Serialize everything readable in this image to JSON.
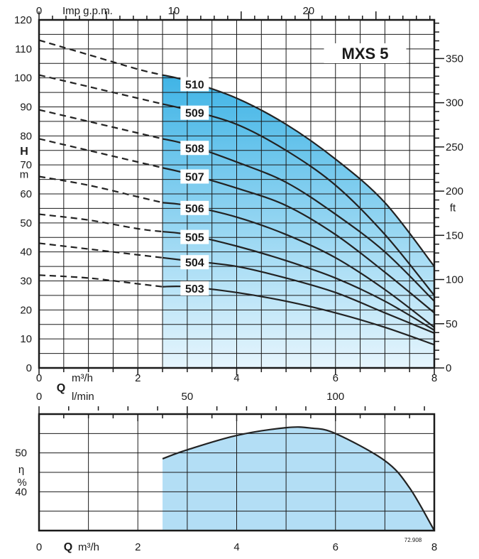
{
  "chart_data": [
    {
      "type": "line",
      "title": "MXS 5",
      "x": {
        "label_unit": "m³/h",
        "label_symbol": "Q",
        "range": [
          0,
          8
        ],
        "ticks": [
          0,
          2,
          4,
          6,
          8
        ]
      },
      "x_lpm": {
        "label": "l/min",
        "range": [
          0,
          133.33
        ],
        "ticks": [
          0,
          50,
          100
        ]
      },
      "x_gpm": {
        "label": "Imp g.p.m.",
        "range": [
          0,
          29.3
        ],
        "ticks": [
          0,
          10,
          20
        ]
      },
      "y": {
        "label_symbol": "H",
        "label_unit": "m",
        "range": [
          0,
          120
        ],
        "ticks": [
          0,
          10,
          20,
          30,
          40,
          50,
          60,
          70,
          80,
          90,
          100,
          110,
          120
        ]
      },
      "y_ft": {
        "label": "ft",
        "range": [
          0,
          393.7
        ],
        "ticks": [
          0,
          50,
          100,
          150,
          200,
          250,
          300,
          350
        ]
      },
      "operating_range": {
        "q_min": 2.5,
        "q_max": 8
      },
      "series": [
        {
          "name": "510",
          "points": [
            [
              0,
              113
            ],
            [
              1,
              108
            ],
            [
              2,
              103
            ],
            [
              2.5,
              101
            ],
            [
              3,
              99
            ],
            [
              4,
              93
            ],
            [
              5,
              84
            ],
            [
              6,
              72
            ],
            [
              7,
              57
            ],
            [
              8,
              35
            ]
          ]
        },
        {
          "name": "509",
          "points": [
            [
              0,
              101
            ],
            [
              1,
              97
            ],
            [
              2,
              93
            ],
            [
              2.5,
              91
            ],
            [
              3,
              89
            ],
            [
              4,
              84
            ],
            [
              5,
              75
            ],
            [
              6,
              63
            ],
            [
              7,
              46
            ],
            [
              8,
              25
            ]
          ]
        },
        {
          "name": "508",
          "points": [
            [
              0,
              89
            ],
            [
              1,
              85
            ],
            [
              2,
              81
            ],
            [
              2.5,
              79
            ],
            [
              3,
              77
            ],
            [
              4,
              71
            ],
            [
              5,
              64
            ],
            [
              6,
              53
            ],
            [
              7,
              40
            ],
            [
              8,
              23
            ]
          ]
        },
        {
          "name": "507",
          "points": [
            [
              0,
              79
            ],
            [
              1,
              75
            ],
            [
              2,
              71
            ],
            [
              2.5,
              69
            ],
            [
              3,
              67
            ],
            [
              4,
              62
            ],
            [
              5,
              56
            ],
            [
              6,
              46
            ],
            [
              7,
              33
            ],
            [
              8,
              19
            ]
          ]
        },
        {
          "name": "506",
          "points": [
            [
              0,
              66
            ],
            [
              1,
              63
            ],
            [
              2,
              59
            ],
            [
              2.5,
              57
            ],
            [
              3,
              56
            ],
            [
              4,
              52
            ],
            [
              5,
              46
            ],
            [
              6,
              38
            ],
            [
              7,
              27
            ],
            [
              8,
              14
            ]
          ]
        },
        {
          "name": "505",
          "points": [
            [
              0,
              53
            ],
            [
              1,
              51
            ],
            [
              2,
              48
            ],
            [
              2.5,
              47
            ],
            [
              3,
              46
            ],
            [
              4,
              42
            ],
            [
              5,
              37
            ],
            [
              6,
              31
            ],
            [
              7,
              23
            ],
            [
              8,
              13
            ]
          ]
        },
        {
          "name": "504",
          "points": [
            [
              0,
              43
            ],
            [
              1,
              41
            ],
            [
              2,
              39
            ],
            [
              2.5,
              38
            ],
            [
              3,
              37
            ],
            [
              4,
              35
            ],
            [
              5,
              31
            ],
            [
              6,
              26
            ],
            [
              7,
              19
            ],
            [
              8,
              12
            ]
          ]
        },
        {
          "name": "503",
          "points": [
            [
              0,
              32
            ],
            [
              1,
              31
            ],
            [
              2,
              29
            ],
            [
              2.5,
              28
            ],
            [
              3,
              28
            ],
            [
              4,
              26
            ],
            [
              5,
              23
            ],
            [
              6,
              19
            ],
            [
              7,
              14
            ],
            [
              8,
              8
            ]
          ]
        }
      ],
      "grid": true
    },
    {
      "type": "line",
      "x": {
        "label_unit": "m³/h",
        "label_symbol": "Q",
        "range": [
          0,
          8
        ],
        "ticks": [
          0,
          2,
          4,
          6,
          8
        ]
      },
      "y": {
        "label_symbol": "η",
        "label_unit": "%",
        "range": [
          30,
          60
        ],
        "ticks": [
          40,
          50
        ]
      },
      "series": [
        {
          "name": "",
          "points": [
            [
              2.5,
              48.5
            ],
            [
              3,
              50.8
            ],
            [
              4,
              54.5
            ],
            [
              5,
              56.5
            ],
            [
              5.5,
              56.4
            ],
            [
              6,
              55
            ],
            [
              7,
              48
            ],
            [
              7.5,
              41
            ],
            [
              8,
              30
            ]
          ]
        }
      ],
      "note": "72.908",
      "grid": true
    }
  ]
}
